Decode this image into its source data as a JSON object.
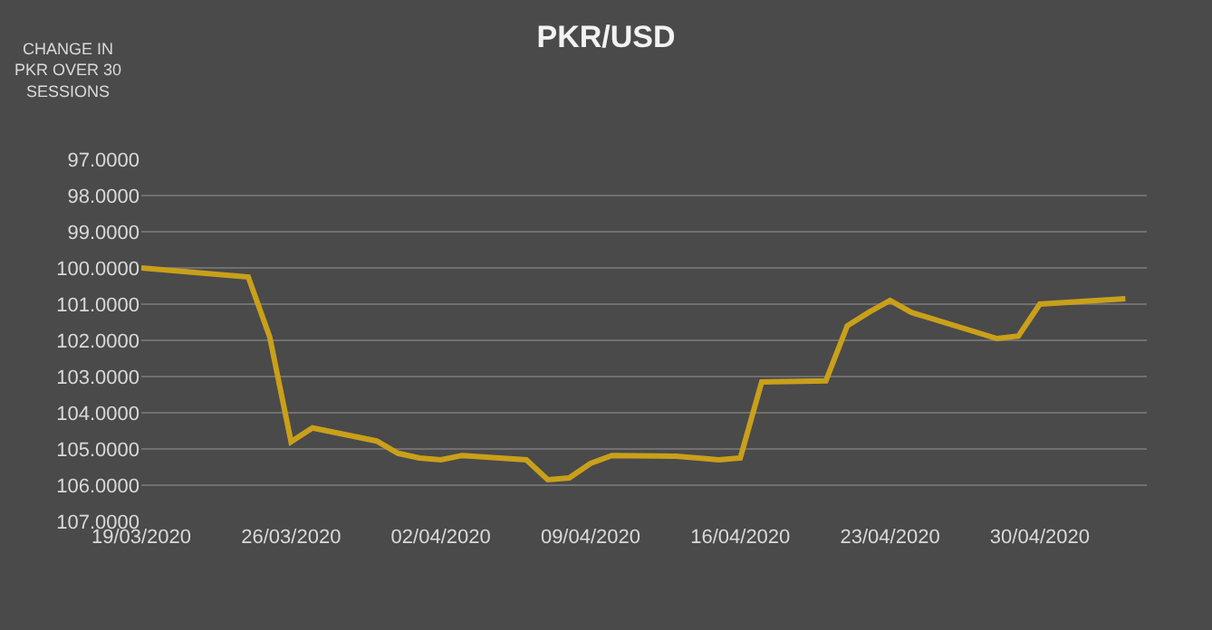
{
  "chart_data": {
    "type": "line",
    "title": "PKR/USD",
    "ylabel": "CHANGE IN PKR OVER 30 SESSIONS",
    "x": [
      "2020-03-19",
      "2020-03-24",
      "2020-03-25",
      "2020-03-26",
      "2020-03-27",
      "2020-03-30",
      "2020-03-31",
      "2020-04-01",
      "2020-04-02",
      "2020-04-03",
      "2020-04-06",
      "2020-04-07",
      "2020-04-08",
      "2020-04-09",
      "2020-04-10",
      "2020-04-13",
      "2020-04-15",
      "2020-04-16",
      "2020-04-17",
      "2020-04-20",
      "2020-04-21",
      "2020-04-22",
      "2020-04-23",
      "2020-04-24",
      "2020-04-28",
      "2020-04-29",
      "2020-04-30",
      "2020-05-04"
    ],
    "series": [
      {
        "color": "#c9a01a",
        "values": [
          100.0,
          100.25,
          101.9,
          104.8,
          104.42,
          104.78,
          105.12,
          105.25,
          105.3,
          105.18,
          105.3,
          105.85,
          105.8,
          105.4,
          105.18,
          105.2,
          105.3,
          105.25,
          103.15,
          103.12,
          101.6,
          101.23,
          100.9,
          101.23,
          101.95,
          101.88,
          101.0,
          100.85
        ]
      }
    ],
    "xlim": [
      "2020-03-19",
      "2020-05-05"
    ],
    "xticks": [
      {
        "value": "2020-03-19",
        "label": "19/03/2020"
      },
      {
        "value": "2020-03-26",
        "label": "26/03/2020"
      },
      {
        "value": "2020-04-02",
        "label": "02/04/2020"
      },
      {
        "value": "2020-04-09",
        "label": "09/04/2020"
      },
      {
        "value": "2020-04-16",
        "label": "16/04/2020"
      },
      {
        "value": "2020-04-23",
        "label": "23/04/2020"
      },
      {
        "value": "2020-04-30",
        "label": "30/04/2020"
      }
    ],
    "ylim": [
      107,
      97
    ],
    "yticks": [
      {
        "value": 97,
        "label": "97.0000"
      },
      {
        "value": 98,
        "label": "98.0000"
      },
      {
        "value": 99,
        "label": "99.0000"
      },
      {
        "value": 100,
        "label": "100.0000"
      },
      {
        "value": 101,
        "label": "101.0000"
      },
      {
        "value": 102,
        "label": "102.0000"
      },
      {
        "value": 103,
        "label": "103.0000"
      },
      {
        "value": 104,
        "label": "104.0000"
      },
      {
        "value": 105,
        "label": "105.0000"
      },
      {
        "value": 106,
        "label": "106.0000"
      },
      {
        "value": 107,
        "label": "107.0000"
      }
    ],
    "grid": "y",
    "marker": "none",
    "line_style": "solid"
  }
}
